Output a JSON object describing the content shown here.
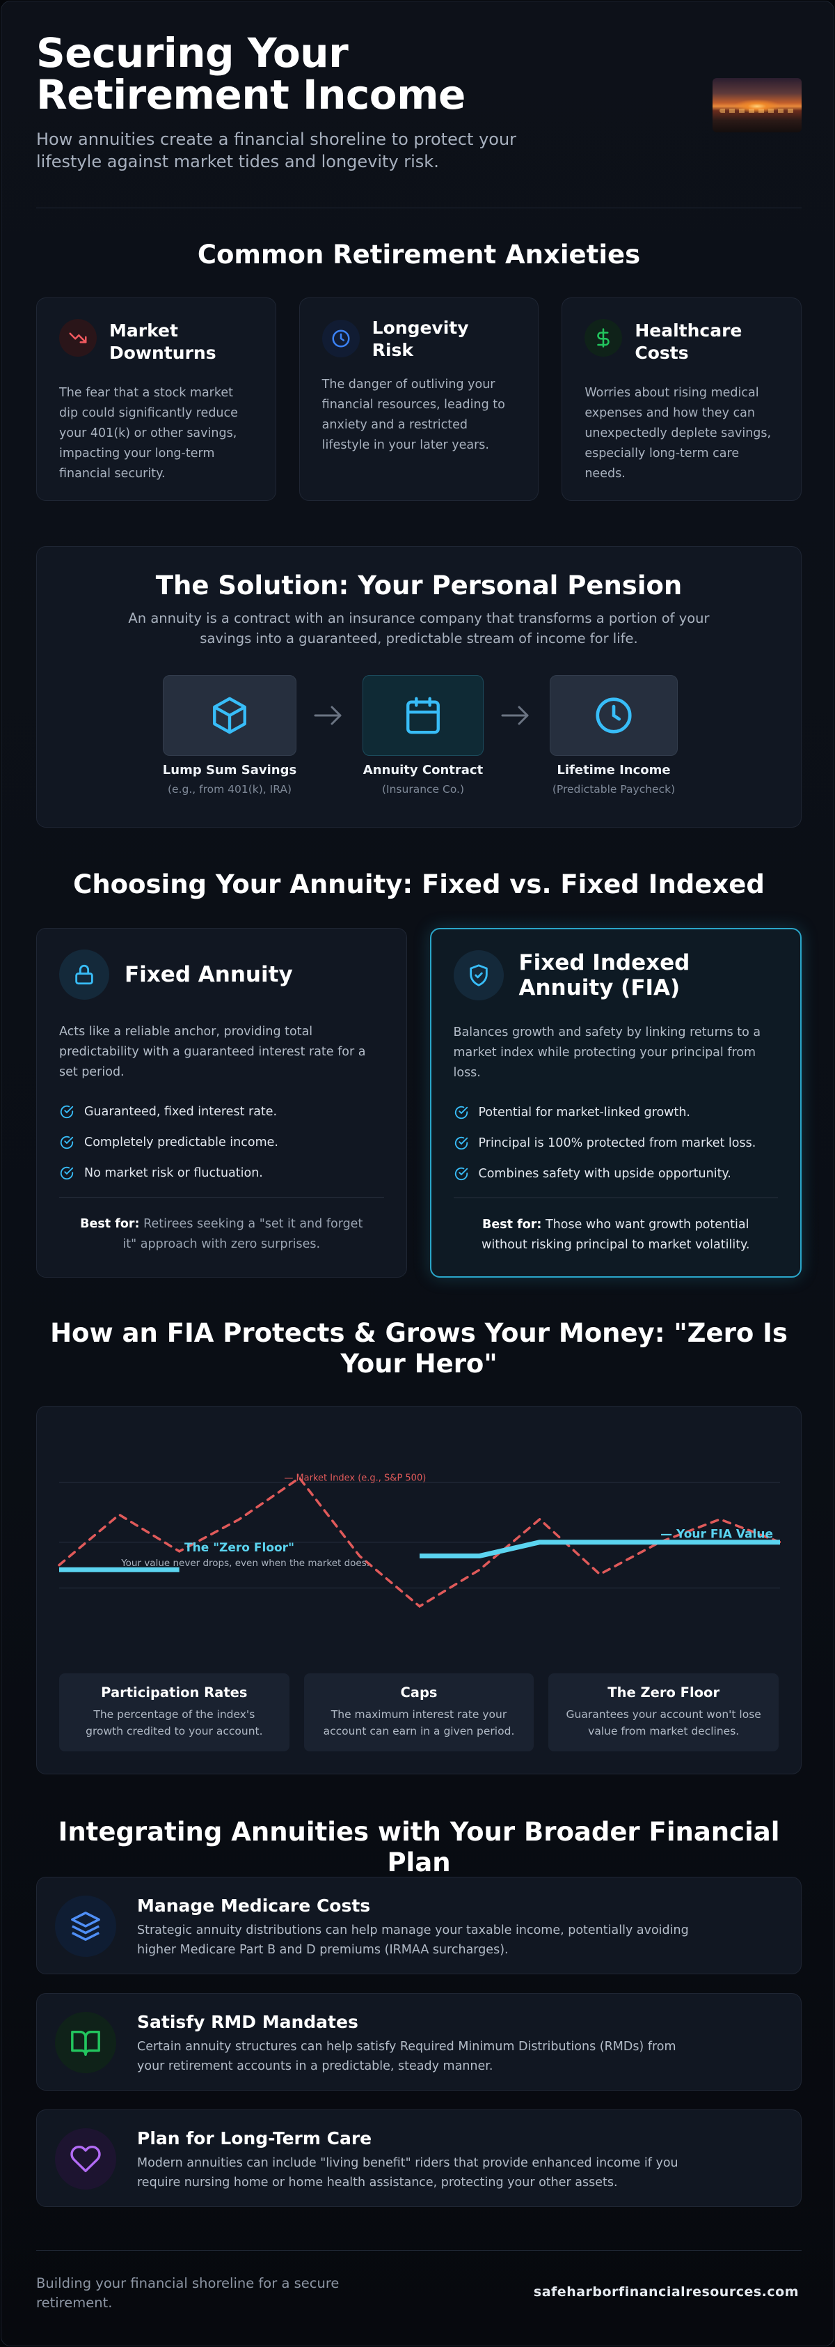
{
  "header": {
    "title": "Securing Your Retirement Income",
    "subtitle": "How annuities create a financial shoreline to protect your lifestyle against market tides and longevity risk."
  },
  "anxieties": {
    "heading": "Common Retirement Anxieties",
    "cards": [
      {
        "title": "Market Downturns",
        "text": "The fear that a stock market dip could significantly reduce your 401(k) or other savings, impacting your long-term financial security.",
        "icon": "trending-down-icon",
        "color": "#f0595f"
      },
      {
        "title": "Longevity Risk",
        "text": "The danger of outliving your financial resources, leading to anxiety and a restricted lifestyle in your later years.",
        "icon": "clock-icon",
        "color": "#3b82f6"
      },
      {
        "title": "Healthcare Costs",
        "text": "Worries about rising medical expenses and how they can unexpectedly deplete savings, especially long-term care needs.",
        "icon": "dollar-icon",
        "color": "#22c55e"
      }
    ]
  },
  "solution": {
    "title": "The Solution: Your Personal Pension",
    "subtitle": "An annuity is a contract with an insurance company that transforms a portion of your savings into a guaranteed, predictable stream of income for life.",
    "steps": [
      {
        "label": "Lump Sum Savings",
        "sub": "(e.g., from 401(k), IRA)",
        "icon": "cube-icon"
      },
      {
        "label": "Annuity Contract",
        "sub": "(Insurance Co.)",
        "icon": "calendar-icon"
      },
      {
        "label": "Lifetime Income",
        "sub": "(Predictable Paycheck)",
        "icon": "clock-icon"
      }
    ]
  },
  "compare": {
    "heading": "Choosing Your Annuity: Fixed vs. Fixed Indexed",
    "fixed": {
      "title": "Fixed Annuity",
      "desc": "Acts like a reliable anchor, providing total predictability with a guaranteed interest rate for a set period.",
      "items": [
        "Guaranteed, fixed interest rate.",
        "Completely predictable income.",
        "No market risk or fluctuation."
      ],
      "best_label": "Best for:",
      "best_text": "Retirees seeking a \"set it and forget it\" approach with zero surprises."
    },
    "fia": {
      "title": "Fixed Indexed Annuity (FIA)",
      "desc": "Balances growth and safety by linking returns to a market index while protecting your principal from loss.",
      "items": [
        "Potential for market-linked growth.",
        "Principal is 100% protected from market loss.",
        "Combines safety with upside opportunity."
      ],
      "best_label": "Best for:",
      "best_text": "Those who want growth potential without risking principal to market volatility."
    }
  },
  "fia_chart": {
    "heading": "How an FIA Protects & Grows Your Money: \"Zero Is Your Hero\"",
    "annotations": {
      "floor_title": "The \"Zero Floor\"",
      "floor_sub": "Your value never drops, even when the market does."
    },
    "terms": [
      {
        "title": "Participation Rates",
        "text": "The percentage of the index's growth credited to your account."
      },
      {
        "title": "Caps",
        "text": "The maximum interest rate your account can earn in a given period."
      },
      {
        "title": "The Zero Floor",
        "text": "Guarantees your account won't lose value from market declines."
      }
    ]
  },
  "chart_data": {
    "type": "line",
    "title": "",
    "xlabel": "",
    "ylabel": "",
    "grid": true,
    "legend": "inline labels",
    "x": [
      0,
      1,
      2,
      3,
      4,
      5,
      6,
      7,
      8,
      9,
      10,
      11,
      12
    ],
    "series": [
      {
        "name": "Market Index (e.g., S&P 500)",
        "style": "dashed",
        "color": "#e05a5a",
        "values": [
          0.05,
          0.6,
          0.2,
          0.55,
          1.0,
          0.15,
          -0.4,
          0.0,
          0.55,
          -0.05,
          0.3,
          0.55,
          0.3
        ]
      },
      {
        "name": "Your FIA Value",
        "style": "solid",
        "color": "#5bd4f0",
        "values": [
          0.0,
          0.0,
          0.0,
          null,
          null,
          null,
          0.15,
          0.15,
          0.3,
          0.3,
          0.3,
          0.3,
          0.3
        ]
      }
    ],
    "ylim": [
      -0.5,
      1.05
    ]
  },
  "integrate": {
    "heading": "Integrating Annuities with Your Broader Financial Plan",
    "items": [
      {
        "title": "Manage Medicare Costs",
        "text": "Strategic annuity distributions can help manage your taxable income, potentially avoiding higher Medicare Part B and D premiums (IRMAA surcharges).",
        "icon": "layers-icon",
        "color": "#3b82f6"
      },
      {
        "title": "Satisfy RMD Mandates",
        "text": "Certain annuity structures can help satisfy Required Minimum Distributions (RMDs) from your retirement accounts in a predictable, steady manner.",
        "icon": "book-icon",
        "color": "#22c55e"
      },
      {
        "title": "Plan for Long-Term Care",
        "text": "Modern annuities can include \"living benefit\" riders that provide enhanced income if you require nursing home or home health assistance, protecting your other assets.",
        "icon": "heart-icon",
        "color": "#a855f7"
      }
    ]
  },
  "footer": {
    "tagline": "Building your financial shoreline for a secure retirement.",
    "site": "safeharborfinancialresources.com"
  },
  "colors": {
    "accent": "#2aa6c9",
    "fia_line": "#5bd4f0",
    "market_line": "#e05a5a"
  }
}
